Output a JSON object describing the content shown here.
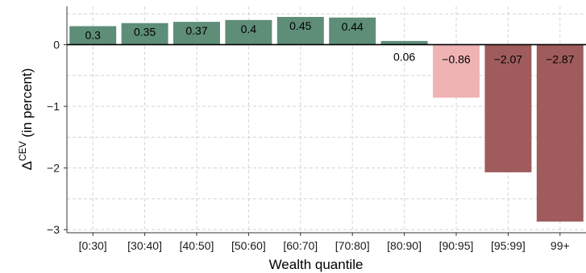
{
  "chart_data": {
    "type": "bar",
    "categories": [
      "[0:30]",
      "[30:40]",
      "[40:50]",
      "[50:60]",
      "[60:70]",
      "[70:80]",
      "[80:90]",
      "[90:95]",
      "[95:99]",
      "99+"
    ],
    "values": [
      0.3,
      0.35,
      0.37,
      0.4,
      0.45,
      0.44,
      0.06,
      -0.86,
      -2.07,
      -2.87
    ],
    "value_labels": [
      "0.3",
      "0.35",
      "0.37",
      "0.4",
      "0.45",
      "0.44",
      "0.06",
      "−0.86",
      "−2.07",
      "−2.87"
    ],
    "bar_colors": [
      "#5e8d78",
      "#5e8d78",
      "#5e8d78",
      "#5e8d78",
      "#5e8d78",
      "#5e8d78",
      "#5e8d78",
      "#efb3b3",
      "#a05c5c",
      "#a05c5c"
    ],
    "title": "",
    "xlabel": "Wealth quantile",
    "ylabel": {
      "base": "Δ",
      "superscript": "CEV",
      "rest": " (in percent)"
    },
    "y_ticks": [
      0,
      -1,
      -2,
      -3
    ],
    "y_tick_labels": [
      "0",
      "−1",
      "−2",
      "−3"
    ],
    "ylim": [
      -3.05,
      0.62
    ],
    "grid": true,
    "legend": "none"
  },
  "colors": {
    "background": "#ffffff",
    "grid": "#d4d4d4",
    "zero_line": "#000000",
    "axis": "#333333"
  }
}
